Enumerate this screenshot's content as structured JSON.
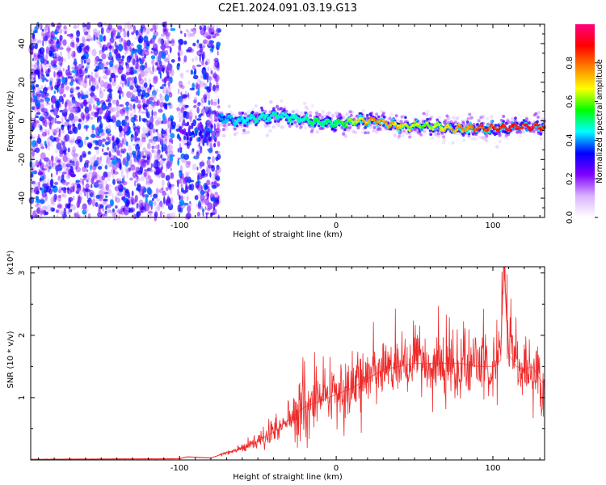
{
  "figure": {
    "title": "C2E1.2024.091.03.19.G13"
  },
  "chart_data": [
    {
      "type": "heatmap",
      "name": "spectrogram",
      "xlabel": "Height of straight line (km)",
      "ylabel": "Frequency (Hz)",
      "xlim": [
        -195,
        133
      ],
      "ylim": [
        -50,
        50
      ],
      "xticks": [
        -100,
        0,
        100
      ],
      "yticks": [
        -40,
        -20,
        0,
        20,
        40
      ],
      "colorbar": {
        "label": "Normalized spectral amplitude",
        "range": [
          0,
          1
        ],
        "ticks": [
          0.0,
          0.2,
          0.4,
          0.6,
          0.8
        ],
        "colormap": [
          "#ffffff",
          "#d9b3ff",
          "#8000ff",
          "#0000ff",
          "#00ffff",
          "#00ff00",
          "#ffff00",
          "#ff8000",
          "#ff0000",
          "#ff0080"
        ]
      },
      "noise_region": {
        "x_range": [
          -195,
          -75
        ],
        "gap_x_range": [
          -104,
          -101
        ]
      },
      "signal_trace": {
        "x": [
          -75,
          -65,
          -55,
          -45,
          -35,
          -25,
          -15,
          -5,
          5,
          15,
          25,
          35,
          45,
          55,
          65,
          75,
          85,
          95,
          105,
          115,
          125,
          133
        ],
        "frequency": [
          2,
          0,
          1,
          2,
          3,
          1,
          0,
          -1,
          -1,
          0,
          0,
          -2,
          -3,
          -2,
          -3,
          -4,
          -4,
          -4,
          -4,
          -3,
          -3,
          -3
        ],
        "peak_amplitude": [
          0.4,
          0.45,
          0.5,
          0.5,
          0.5,
          0.5,
          0.55,
          0.55,
          0.6,
          0.75,
          0.85,
          0.8,
          0.7,
          0.65,
          0.7,
          0.8,
          0.85,
          0.9,
          0.95,
          0.95,
          0.95,
          0.9
        ]
      }
    },
    {
      "type": "line",
      "name": "snr",
      "xlabel": "Height of straight line (km)",
      "ylabel": "SNR (10 * v/v)",
      "y_multiplier": "(x10⁴)",
      "xlim": [
        -195,
        133
      ],
      "ylim": [
        0,
        3.1
      ],
      "xticks": [
        -100,
        0,
        100
      ],
      "yticks": [
        1,
        2,
        3
      ],
      "color": "#ee2a2a",
      "series": [
        {
          "x": [
            -195,
            -100,
            -95,
            -80,
            -70,
            -60,
            -50,
            -40,
            -30,
            -20,
            -10,
            0,
            10,
            20,
            30,
            40,
            50,
            60,
            70,
            80,
            90,
            100,
            105,
            106,
            107,
            110,
            115,
            120,
            125,
            130,
            133
          ],
          "y": [
            0.01,
            0.02,
            0.05,
            0.03,
            0.12,
            0.18,
            0.3,
            0.45,
            0.65,
            0.85,
            0.95,
            1.05,
            1.15,
            1.3,
            1.45,
            1.5,
            1.55,
            1.55,
            1.55,
            1.55,
            1.5,
            1.5,
            1.6,
            2.5,
            3.1,
            1.7,
            1.5,
            1.45,
            1.5,
            1.3,
            1.2
          ]
        }
      ]
    }
  ]
}
